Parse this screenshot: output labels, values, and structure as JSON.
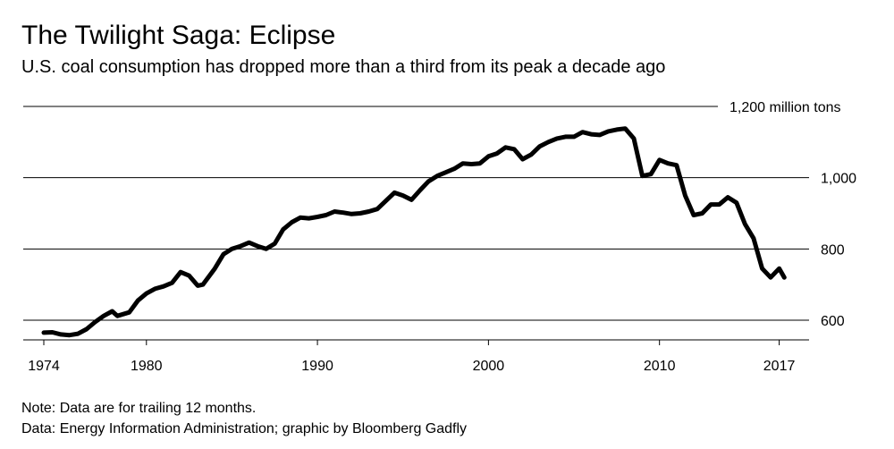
{
  "title": "The Twilight Saga: Eclipse",
  "subtitle": "U.S. coal consumption has dropped more than a third from its peak a decade ago",
  "notes": {
    "note": "Note: Data are for trailing 12 months.",
    "source": "Data: Energy Information Administration; graphic by Bloomberg Gadfly"
  },
  "chart_data": {
    "type": "line",
    "title": "The Twilight Saga: Eclipse",
    "subtitle": "U.S. coal consumption has dropped more than a third from its peak a decade ago",
    "xlabel": "",
    "ylabel": "",
    "xlim": [
      1974,
      2018
    ],
    "ylim": [
      550,
      1200
    ],
    "x_ticks": [
      {
        "value": 1974,
        "label": "1974"
      },
      {
        "value": 1980,
        "label": "1980"
      },
      {
        "value": 1990,
        "label": "1990"
      },
      {
        "value": 2000,
        "label": "2000"
      },
      {
        "value": 2010,
        "label": "2010"
      },
      {
        "value": 2017,
        "label": "2017"
      }
    ],
    "y_ticks": [
      {
        "value": 600,
        "label": "600"
      },
      {
        "value": 800,
        "label": "800"
      },
      {
        "value": 1000,
        "label": "1,000"
      },
      {
        "value": 1200,
        "label": "1,200 million tons"
      }
    ],
    "grid": "horizontal",
    "line_color": "#000000",
    "series": [
      {
        "x": [
          1974,
          1974.5,
          1975,
          1975.5,
          1976,
          1976.5,
          1977,
          1977.5,
          1978,
          1978.3,
          1979,
          1979.5,
          1980,
          1980.5,
          1981,
          1981.5,
          1982,
          1982.5,
          1983,
          1983.3,
          1984,
          1984.5,
          1985,
          1985.5,
          1986,
          1986.5,
          1987,
          1987.5,
          1988,
          1988.5,
          1989,
          1989.5,
          1990,
          1990.5,
          1991,
          1991.5,
          1992,
          1992.5,
          1993,
          1993.5,
          1994,
          1994.5,
          1995,
          1995.5,
          1996,
          1996.5,
          1997,
          1997.5,
          1998,
          1998.5,
          1999,
          1999.5,
          2000,
          2000.5,
          2001,
          2001.5,
          2002,
          2002.5,
          2003,
          2003.5,
          2004,
          2004.5,
          2005,
          2005.5,
          2006,
          2006.5,
          2007,
          2007.5,
          2008,
          2008.5,
          2009,
          2009.5,
          2010,
          2010.5,
          2011,
          2011.5,
          2012,
          2012.5,
          2013,
          2013.5,
          2014,
          2014.5,
          2015,
          2015.5,
          2016,
          2016.5,
          2017,
          2017.3
        ],
        "y": [
          565,
          566,
          560,
          558,
          562,
          575,
          595,
          612,
          625,
          612,
          622,
          655,
          675,
          688,
          695,
          705,
          735,
          725,
          697,
          700,
          745,
          785,
          800,
          808,
          818,
          808,
          800,
          815,
          855,
          875,
          888,
          886,
          890,
          895,
          905,
          902,
          898,
          900,
          905,
          912,
          935,
          958,
          950,
          938,
          965,
          990,
          1005,
          1015,
          1025,
          1040,
          1038,
          1040,
          1060,
          1068,
          1085,
          1080,
          1052,
          1065,
          1088,
          1100,
          1110,
          1115,
          1115,
          1128,
          1122,
          1120,
          1130,
          1135,
          1138,
          1110,
          1005,
          1010,
          1050,
          1040,
          1035,
          950,
          895,
          900,
          925,
          925,
          945,
          930,
          870,
          830,
          745,
          720,
          745,
          720
        ]
      }
    ]
  }
}
